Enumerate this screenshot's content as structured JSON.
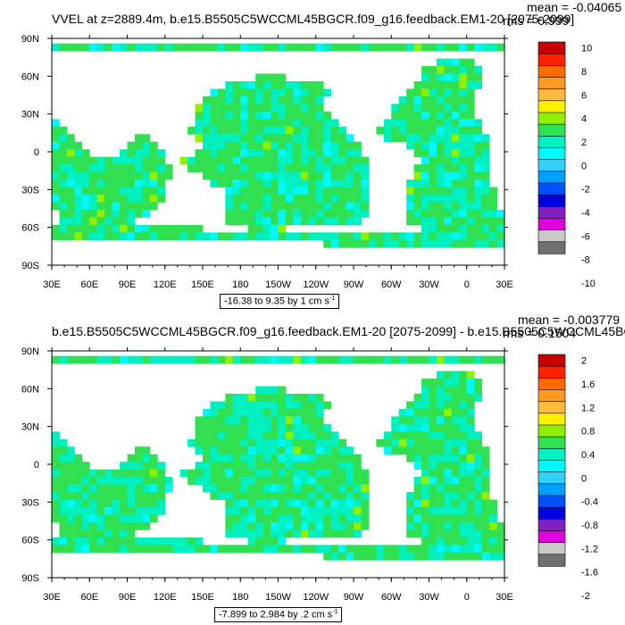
{
  "chart_data": [
    {
      "type": "heatmap",
      "title": "VVEL at z=2889.4m, b.e15.B5505C5WCCML45BGCR.f09_g16.feedback.EM1-20 [2075-2099]",
      "stat_mean": "mean = -0.04065",
      "stat_rms": "rms = 0.999",
      "range_text": "-16.38 to 9.35 by 1 cm s",
      "range_unit_exp": "-1",
      "xticks": [
        "30E",
        "60E",
        "90E",
        "120E",
        "150E",
        "180",
        "150W",
        "120W",
        "90W",
        "60W",
        "30W",
        "0",
        "30E"
      ],
      "yticks": [
        "90N",
        "60N",
        "30N",
        "0",
        "30S",
        "60S",
        "90S"
      ],
      "levels": [
        "10",
        "8",
        "6",
        "4",
        "2",
        "0",
        "-2",
        "-4",
        "-6",
        "-8",
        "-10"
      ],
      "colors": [
        "#c80000",
        "#ff2000",
        "#ff6a00",
        "#ff9a20",
        "#ffba40",
        "#fff000",
        "#90f000",
        "#30e050",
        "#00f0c0",
        "#00f8ff",
        "#30d0ff",
        "#00a0ff",
        "#0050ff",
        "#0000e0",
        "#8020c0",
        "#e000e0",
        "#c8c8c8",
        "#707070"
      ]
    },
    {
      "type": "heatmap",
      "title": "b.e15.B5505C5WCCML45BGCR.f09_g16.feedback.EM1-20 [2075-2099] - b.e15.B5505C5WCCML45BG",
      "stat_mean": "mean = -0.003779",
      "stat_rms": "rms = 0.1504",
      "range_text": "-7.899 to 2.984 by .2 cm s",
      "range_unit_exp": "-1",
      "xticks": [
        "30E",
        "60E",
        "90E",
        "120E",
        "150E",
        "180",
        "150W",
        "120W",
        "90W",
        "60W",
        "30W",
        "0",
        "30E"
      ],
      "yticks": [
        "90N",
        "60N",
        "30N",
        "0",
        "30S",
        "60S",
        "90S"
      ],
      "levels": [
        "2",
        "1.6",
        "1.2",
        "0.8",
        "0.4",
        "0",
        "-0.4",
        "-0.8",
        "-1.2",
        "-1.6",
        "-2"
      ],
      "colors": [
        "#c80000",
        "#ff2000",
        "#ff6a00",
        "#ff9a20",
        "#ffba40",
        "#fff000",
        "#90f000",
        "#30e050",
        "#00f0c0",
        "#00f8ff",
        "#30d0ff",
        "#00a0ff",
        "#0050ff",
        "#0000e0",
        "#8020c0",
        "#e000e0",
        "#c8c8c8",
        "#707070"
      ]
    }
  ]
}
